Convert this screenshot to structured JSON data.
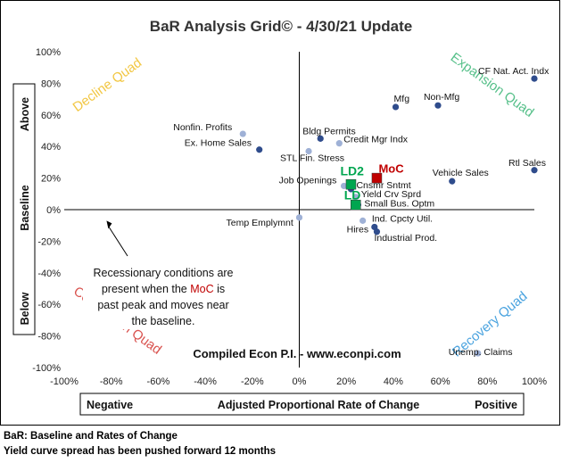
{
  "chart_data": {
    "type": "scatter",
    "title": "BaR Analysis Grid© - 4/30/21 Update",
    "xlim": [
      -100,
      100
    ],
    "ylim": [
      -100,
      100
    ],
    "x_ticks": [
      -100,
      -80,
      -60,
      -40,
      -20,
      0,
      20,
      40,
      60,
      80,
      100
    ],
    "y_ticks": [
      -100,
      -80,
      -60,
      -40,
      -20,
      0,
      20,
      40,
      60,
      80,
      100
    ],
    "x_tick_labels": [
      "-100%",
      "-80%",
      "-60%",
      "-40%",
      "-20%",
      "0%",
      "20%",
      "40%",
      "60%",
      "80%",
      "100%"
    ],
    "y_tick_labels": [
      "-100%",
      "-80%",
      "-60%",
      "-40%",
      "-20%",
      "0%",
      "20%",
      "40%",
      "60%",
      "80%",
      "100%"
    ],
    "grid": false,
    "xlabel": {
      "left": "Negative",
      "center": "Adjusted Proportional Rate of Change",
      "right": "Positive"
    },
    "ylabel": {
      "top": "Above",
      "middle": "Baseline",
      "bottom": "Below"
    },
    "quadrants": [
      {
        "label": "Decline Quad",
        "color": "#F2C744"
      },
      {
        "label": "Expansion Quad",
        "color": "#57C08A"
      },
      {
        "label": "Contraction Quad",
        "color": "#D9534F"
      },
      {
        "label": "Recovery Quad",
        "color": "#4AA3DF"
      }
    ],
    "points": [
      {
        "label": "CF Nat. Act. Indx",
        "x": 100,
        "y": 83,
        "color": "#2F4C8C"
      },
      {
        "label": "Mfg",
        "x": 41,
        "y": 65,
        "color": "#2F4C8C"
      },
      {
        "label": "Non-Mfg",
        "x": 59,
        "y": 66,
        "color": "#2F4C8C"
      },
      {
        "label": "Nonfin. Profits",
        "x": -24,
        "y": 48,
        "color": "#9FB1D6"
      },
      {
        "label": "Ex. Home Sales",
        "x": -17,
        "y": 38,
        "color": "#2F4C8C"
      },
      {
        "label": "Bldg Permits",
        "x": 9,
        "y": 45,
        "color": "#2F4C8C"
      },
      {
        "label": "Credit Mgr Indx",
        "x": 17,
        "y": 42,
        "color": "#9FB1D6"
      },
      {
        "label": "STL Fin. Stress",
        "x": 4,
        "y": 37,
        "color": "#9FB1D6"
      },
      {
        "label": "Rtl Sales",
        "x": 100,
        "y": 25,
        "color": "#2F4C8C"
      },
      {
        "label": "Vehicle Sales",
        "x": 65,
        "y": 18,
        "color": "#2F4C8C"
      },
      {
        "label": "Job Openings",
        "x": 19,
        "y": 15,
        "color": "#9FB1D6"
      },
      {
        "label": "Cnsmr Sntmt",
        "x": 22,
        "y": 13,
        "color": "#2F4C8C"
      },
      {
        "label": "Yield Crv Sprd",
        "x": 24,
        "y": 8,
        "color": "#9FB1D6"
      },
      {
        "label": "Small Bus. Optm",
        "x": 25,
        "y": 3,
        "color": "#2F4C8C"
      },
      {
        "label": "Temp Emplymnt",
        "x": 0,
        "y": -5,
        "color": "#9FB1D6"
      },
      {
        "label": "Hires",
        "x": 27,
        "y": -7,
        "color": "#9FB1D6"
      },
      {
        "label": "Ind. Cpcty Util.",
        "x": 32,
        "y": -11,
        "color": "#2F4C8C"
      },
      {
        "label": "Industrial Prod.",
        "x": 33,
        "y": -14,
        "color": "#2F4C8C"
      },
      {
        "label": "Unemp. Claims",
        "x": 76,
        "y": -91,
        "color": "#9FB1D6"
      }
    ],
    "markers": [
      {
        "label": "MoC",
        "x": 33,
        "y": 20,
        "color": "#C00000",
        "label_color": "#C00000"
      },
      {
        "label": "LD2",
        "x": 22,
        "y": 16,
        "color": "#00A650",
        "label_color": "#00A650"
      },
      {
        "label": "LD",
        "x": 24,
        "y": 3,
        "color": "#00A650",
        "label_color": "#00A650"
      }
    ],
    "annotation": {
      "lines": [
        [
          {
            "t": "Recessionary conditions are"
          }
        ],
        [
          {
            "t": "present when the "
          },
          {
            "t": "MoC",
            "red": true
          },
          {
            "t": " is"
          }
        ],
        [
          {
            "t": "past peak and moves near"
          }
        ],
        [
          {
            "t": "the baseline."
          }
        ]
      ],
      "arrow_to": {
        "x": -82,
        "y": -7
      }
    },
    "source": "Compiled Econ P.I. - www.econpi.com"
  },
  "footnotes": {
    "line1": "BaR: Baseline and Rates of Change",
    "line2": "Yield curve spread has been pushed forward 12 months"
  }
}
